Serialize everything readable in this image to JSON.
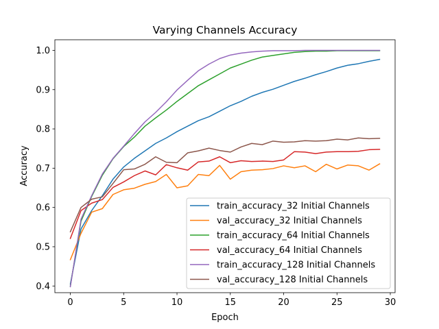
{
  "chart_data": {
    "type": "line",
    "title": "Varying Channels Accuracy",
    "xlabel": "Epoch",
    "ylabel": "Accuracy",
    "xlim": [
      -1.45,
      30.45
    ],
    "ylim": [
      0.383,
      1.027
    ],
    "xticks": [
      0,
      5,
      10,
      15,
      20,
      25,
      30
    ],
    "yticks": [
      0.4,
      0.5,
      0.6,
      0.7,
      0.8,
      0.9,
      1.0
    ],
    "xtick_labels": [
      "0",
      "5",
      "10",
      "15",
      "20",
      "25",
      "30"
    ],
    "ytick_labels": [
      "0.4",
      "0.5",
      "0.6",
      "0.7",
      "0.8",
      "0.9",
      "1.0"
    ],
    "grid": false,
    "legend_position": "lower-right",
    "x": [
      0,
      1,
      2,
      3,
      4,
      5,
      6,
      7,
      8,
      9,
      10,
      11,
      12,
      13,
      14,
      15,
      16,
      17,
      18,
      19,
      20,
      21,
      22,
      23,
      24,
      25,
      26,
      27,
      28,
      29
    ],
    "series": [
      {
        "name": "train_accuracy_32 Initial Channels",
        "color": "#1f77b4",
        "values": [
          0.405,
          0.545,
          0.592,
          0.63,
          0.672,
          0.703,
          0.725,
          0.744,
          0.763,
          0.777,
          0.793,
          0.807,
          0.821,
          0.831,
          0.845,
          0.859,
          0.87,
          0.883,
          0.893,
          0.901,
          0.911,
          0.921,
          0.929,
          0.938,
          0.946,
          0.955,
          0.962,
          0.966,
          0.972,
          0.977
        ]
      },
      {
        "name": "val_accuracy_32 Initial Channels",
        "color": "#ff7f0e",
        "values": [
          0.467,
          0.534,
          0.588,
          0.597,
          0.633,
          0.645,
          0.649,
          0.659,
          0.666,
          0.684,
          0.65,
          0.655,
          0.684,
          0.681,
          0.707,
          0.672,
          0.691,
          0.695,
          0.696,
          0.699,
          0.706,
          0.701,
          0.706,
          0.691,
          0.71,
          0.698,
          0.708,
          0.706,
          0.695,
          0.711
        ]
      },
      {
        "name": "train_accuracy_64 Initial Channels",
        "color": "#2ca02c",
        "values": [
          0.4,
          0.565,
          0.628,
          0.682,
          0.724,
          0.755,
          0.779,
          0.807,
          0.828,
          0.848,
          0.87,
          0.89,
          0.91,
          0.925,
          0.94,
          0.955,
          0.965,
          0.975,
          0.983,
          0.987,
          0.991,
          0.995,
          0.997,
          0.998,
          0.998,
          0.999,
          0.999,
          0.999,
          0.999,
          0.999
        ]
      },
      {
        "name": "val_accuracy_64 Initial Channels",
        "color": "#d62728",
        "values": [
          0.521,
          0.592,
          0.611,
          0.62,
          0.651,
          0.665,
          0.681,
          0.693,
          0.683,
          0.709,
          0.701,
          0.695,
          0.716,
          0.718,
          0.729,
          0.714,
          0.719,
          0.717,
          0.718,
          0.717,
          0.721,
          0.742,
          0.741,
          0.737,
          0.741,
          0.742,
          0.742,
          0.743,
          0.747,
          0.748
        ]
      },
      {
        "name": "train_accuracy_128 Initial Channels",
        "color": "#9467bd",
        "values": [
          0.398,
          0.57,
          0.63,
          0.685,
          0.725,
          0.756,
          0.788,
          0.818,
          0.842,
          0.869,
          0.899,
          0.924,
          0.948,
          0.965,
          0.979,
          0.988,
          0.993,
          0.996,
          0.998,
          0.999,
          0.999,
          0.999,
          1.0,
          1.0,
          1.0,
          1.0,
          1.0,
          1.0,
          1.0,
          1.0
        ]
      },
      {
        "name": "val_accuracy_128 Initial Channels",
        "color": "#8c564b",
        "values": [
          0.538,
          0.6,
          0.621,
          0.627,
          0.661,
          0.696,
          0.698,
          0.71,
          0.729,
          0.715,
          0.714,
          0.739,
          0.744,
          0.751,
          0.745,
          0.741,
          0.754,
          0.763,
          0.76,
          0.769,
          0.766,
          0.767,
          0.77,
          0.769,
          0.77,
          0.774,
          0.772,
          0.777,
          0.775,
          0.776
        ]
      }
    ]
  }
}
